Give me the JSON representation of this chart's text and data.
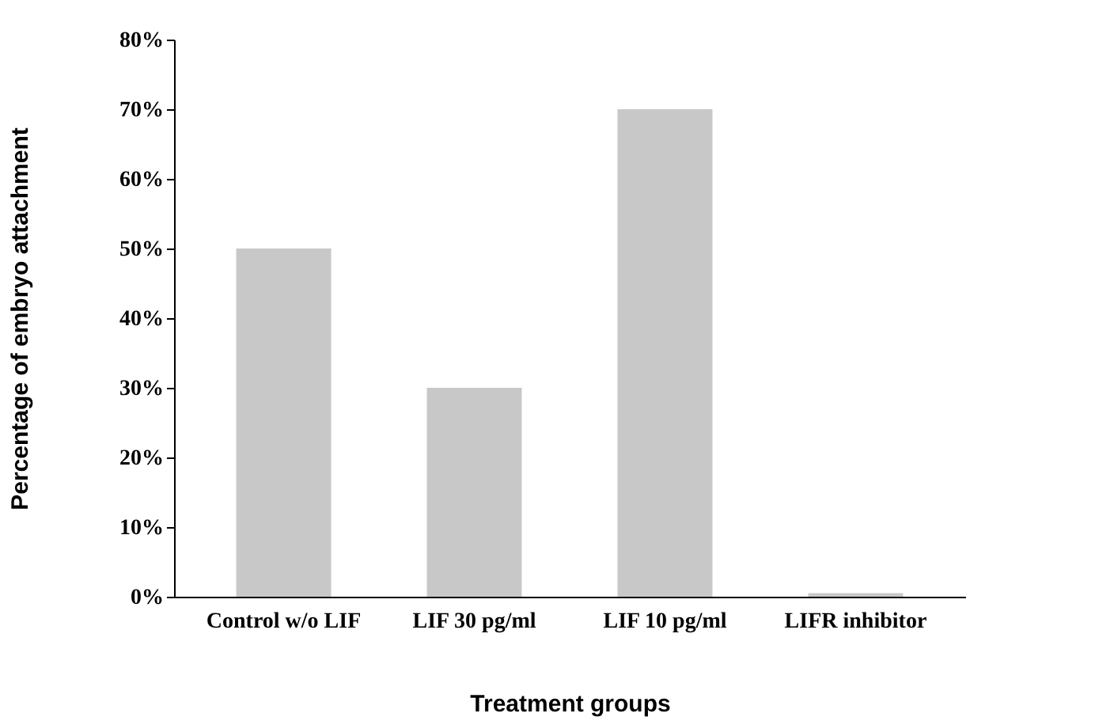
{
  "chart_data": {
    "type": "bar",
    "xlabel": "Treatment groups",
    "ylabel": "Percentage of embryo attachment",
    "categories": [
      "Control w/o LIF",
      "LIF 30 pg/ml",
      "LIF 10 pg/ml",
      "LIFR inhibitor"
    ],
    "values": [
      50,
      30,
      70,
      0.5
    ],
    "color": "#c8c8c8",
    "ylim": [
      0,
      80
    ],
    "yticks": [
      {
        "value": 0,
        "label": "0%"
      },
      {
        "value": 10,
        "label": "10%"
      },
      {
        "value": 20,
        "label": "20%"
      },
      {
        "value": 30,
        "label": "30%"
      },
      {
        "value": 40,
        "label": "40%"
      },
      {
        "value": 50,
        "label": "50%"
      },
      {
        "value": 60,
        "label": "60%"
      },
      {
        "value": 70,
        "label": "70%"
      },
      {
        "value": 80,
        "label": "80%"
      }
    ],
    "grid": false
  }
}
